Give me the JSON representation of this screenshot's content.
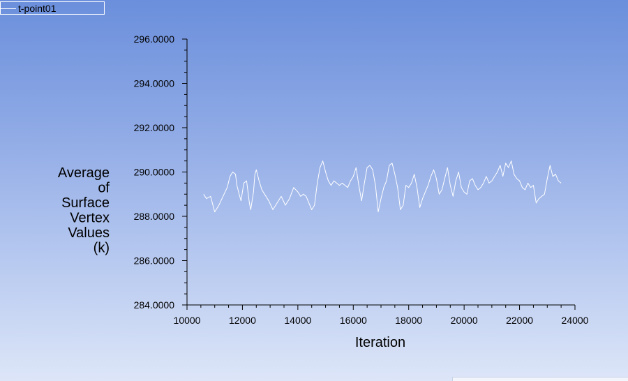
{
  "chart_data": {
    "type": "line",
    "legend": {
      "entries": [
        "t-point01"
      ],
      "placement": "top-left"
    },
    "xlabel": "Iteration",
    "ylabel": [
      "Average",
      "of",
      "Surface",
      "Vertex",
      "Values",
      "(k)"
    ],
    "xlim": [
      10000,
      24000
    ],
    "ylim": [
      284,
      296
    ],
    "xticks": [
      10000,
      12000,
      14000,
      16000,
      18000,
      20000,
      22000,
      24000
    ],
    "xtick_labels": [
      "10000",
      "12000",
      "14000",
      "16000",
      "18000",
      "20000",
      "22000",
      "24000"
    ],
    "yticks": [
      284,
      286,
      288,
      290,
      292,
      294,
      296
    ],
    "ytick_labels": [
      "284.0000",
      "286.0000",
      "288.0000",
      "290.0000",
      "292.0000",
      "294.0000",
      "296.0000"
    ],
    "grid": false,
    "series": [
      {
        "name": "t-point01",
        "color": "#ffffff",
        "x": [
          10600,
          10700,
          10850,
          11000,
          11150,
          11300,
          11450,
          11550,
          11650,
          11750,
          11800,
          11880,
          11950,
          12050,
          12150,
          12250,
          12300,
          12400,
          12450,
          12500,
          12600,
          12700,
          12800,
          12950,
          13100,
          13250,
          13400,
          13550,
          13700,
          13850,
          14000,
          14100,
          14200,
          14300,
          14400,
          14500,
          14600,
          14700,
          14800,
          14900,
          15000,
          15100,
          15200,
          15300,
          15400,
          15500,
          15600,
          15700,
          15800,
          15900,
          16000,
          16100,
          16200,
          16300,
          16400,
          16500,
          16600,
          16700,
          16800,
          16900,
          17000,
          17100,
          17200,
          17300,
          17400,
          17500,
          17600,
          17700,
          17800,
          17900,
          18000,
          18100,
          18200,
          18300,
          18400,
          18500,
          18600,
          18700,
          18800,
          18900,
          19000,
          19100,
          19200,
          19300,
          19400,
          19500,
          19600,
          19700,
          19800,
          19900,
          20000,
          20100,
          20200,
          20300,
          20400,
          20500,
          20600,
          20700,
          20800,
          20900,
          21000,
          21100,
          21200,
          21300,
          21400,
          21500,
          21600,
          21700,
          21800,
          21900,
          22000,
          22100,
          22200,
          22300,
          22400,
          22500,
          22600,
          22700,
          22800,
          22900,
          23000,
          23100,
          23200,
          23300,
          23400,
          23500
        ],
        "values": [
          289.0,
          288.8,
          288.9,
          288.2,
          288.5,
          288.9,
          289.3,
          289.8,
          290.0,
          289.9,
          289.4,
          289.0,
          288.7,
          289.5,
          289.6,
          288.6,
          288.3,
          289.1,
          289.9,
          290.1,
          289.6,
          289.2,
          289.0,
          288.7,
          288.3,
          288.6,
          288.9,
          288.5,
          288.8,
          289.3,
          289.1,
          288.9,
          289.0,
          288.9,
          288.6,
          288.3,
          288.5,
          289.5,
          290.2,
          290.5,
          290.0,
          289.6,
          289.4,
          289.6,
          289.5,
          289.4,
          289.5,
          289.4,
          289.3,
          289.6,
          289.8,
          290.2,
          289.4,
          288.7,
          289.5,
          290.2,
          290.3,
          290.1,
          289.4,
          288.2,
          288.8,
          289.3,
          289.6,
          290.3,
          290.4,
          289.9,
          289.3,
          288.3,
          288.5,
          289.4,
          289.3,
          289.5,
          289.9,
          289.3,
          288.4,
          288.8,
          289.1,
          289.4,
          289.8,
          290.1,
          289.7,
          289.0,
          289.2,
          289.7,
          290.2,
          289.4,
          288.9,
          289.6,
          290.0,
          289.3,
          289.1,
          289.0,
          289.6,
          289.7,
          289.4,
          289.2,
          289.3,
          289.5,
          289.8,
          289.5,
          289.6,
          289.8,
          290.0,
          290.3,
          289.8,
          290.4,
          290.2,
          290.5,
          289.9,
          289.7,
          289.6,
          289.3,
          289.2,
          289.5,
          289.3,
          289.4,
          288.6,
          288.8,
          288.9,
          289.0,
          289.7,
          290.3,
          289.8,
          289.9,
          289.6,
          289.5
        ]
      }
    ]
  }
}
